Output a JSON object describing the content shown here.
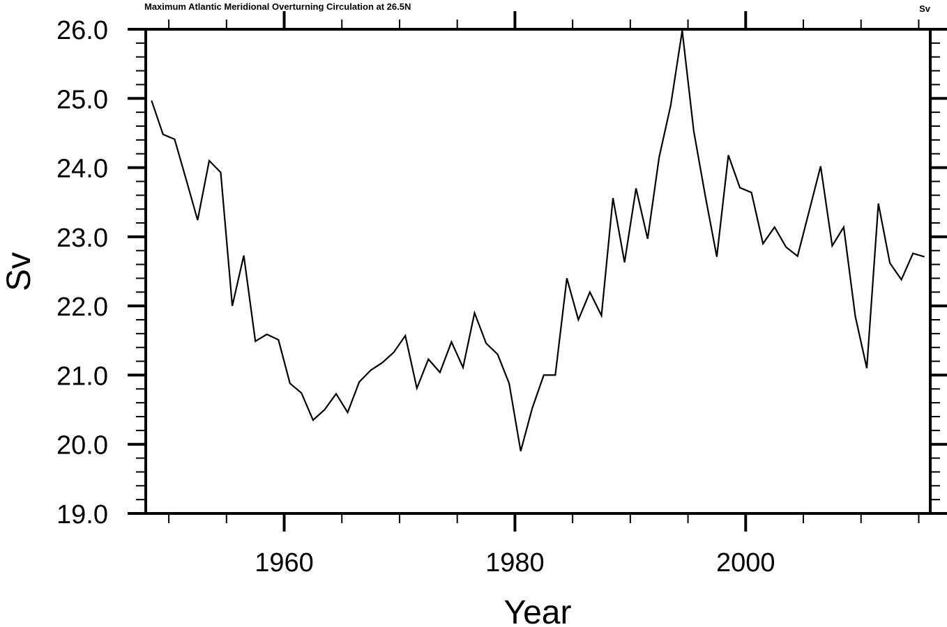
{
  "chart_data": {
    "type": "line",
    "title_left": "Maximum  Atlantic Meridional Overturning Circulation at 26.5N",
    "title_right": "Sv",
    "xlabel": "Year",
    "ylabel": "Sv",
    "xlim": [
      1948,
      2016
    ],
    "ylim": [
      19.0,
      26.0
    ],
    "grid": false,
    "x_major_ticks": [
      1960,
      1980,
      2000
    ],
    "x_minor_step": 5,
    "y_major_ticks": [
      19.0,
      20.0,
      21.0,
      22.0,
      23.0,
      24.0,
      25.0,
      26.0
    ],
    "y_tick_labels": [
      "19.0",
      "20.0",
      "21.0",
      "22.0",
      "23.0",
      "24.0",
      "25.0",
      "26.0"
    ],
    "y_minor_step": 0.2,
    "series": [
      {
        "x": [
          1948.5,
          1949.5,
          1950.5,
          1951.5,
          1952.5,
          1953.5,
          1954.5,
          1955.5,
          1956.5,
          1957.5,
          1958.5,
          1959.5,
          1960.5,
          1961.5,
          1962.5,
          1963.5,
          1964.5,
          1965.5,
          1966.5,
          1967.5,
          1968.5,
          1969.5,
          1970.5,
          1971.5,
          1972.5,
          1973.5,
          1974.5,
          1975.5,
          1976.5,
          1977.5,
          1978.5,
          1979.5,
          1980.5,
          1981.5,
          1982.5,
          1983.5,
          1984.5,
          1985.5,
          1986.5,
          1987.5,
          1988.5,
          1989.5,
          1990.5,
          1991.5,
          1992.5,
          1993.5,
          1994.5,
          1995.5,
          1996.5,
          1997.5,
          1998.5,
          1999.5,
          2000.5,
          2001.5,
          2002.5,
          2003.5,
          2004.5,
          2005.5,
          2006.5,
          2007.5,
          2008.5,
          2009.5,
          2010.5,
          2011.5,
          2012.5,
          2013.5,
          2014.5,
          2015.5
        ],
        "values": [
          24.97,
          24.48,
          24.41,
          23.83,
          23.24,
          24.1,
          23.93,
          22.0,
          22.73,
          21.49,
          21.59,
          21.51,
          20.88,
          20.74,
          20.35,
          20.5,
          20.73,
          20.46,
          20.9,
          21.07,
          21.18,
          21.33,
          21.57,
          20.81,
          21.23,
          21.04,
          21.48,
          21.11,
          21.9,
          21.46,
          21.3,
          20.88,
          19.9,
          20.52,
          21.0,
          21.0,
          22.4,
          21.8,
          22.2,
          21.86,
          23.56,
          22.63,
          23.7,
          22.97,
          24.15,
          24.9,
          25.98,
          24.53,
          23.59,
          22.71,
          24.18,
          23.71,
          23.64,
          22.9,
          23.14,
          22.85,
          22.72,
          23.37,
          24.02,
          22.87,
          23.14,
          21.85,
          21.1,
          23.48,
          22.62,
          22.38,
          22.76,
          22.71
        ]
      }
    ]
  }
}
